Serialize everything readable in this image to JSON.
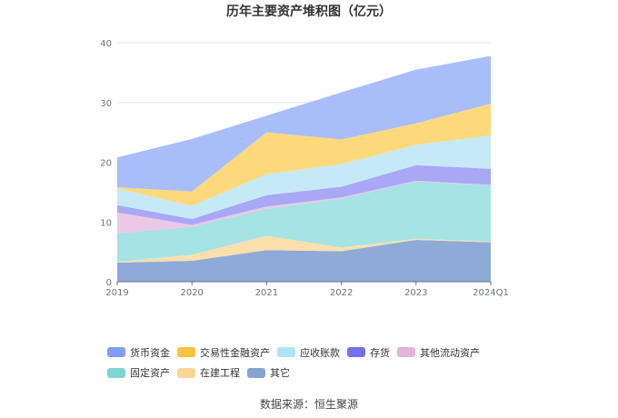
{
  "source_text": "数据来源：恒生聚源",
  "chart_data": {
    "type": "area",
    "stacked": true,
    "title": "历年主要资产堆积图（亿元）",
    "categories": [
      "2019",
      "2020",
      "2021",
      "2022",
      "2023",
      "2024Q1"
    ],
    "ylim": [
      0,
      40
    ],
    "yticks": [
      0,
      10,
      20,
      30,
      40
    ],
    "grid": true,
    "legend_position": "bottom",
    "series": [
      {
        "name": "其它",
        "color": "#8eaad9",
        "values": [
          3.2,
          3.5,
          5.3,
          5.1,
          7.0,
          6.6
        ]
      },
      {
        "name": "在建工程",
        "color": "#fddfab",
        "values": [
          0.1,
          1.0,
          2.4,
          0.6,
          0.2,
          0.1
        ]
      },
      {
        "name": "固定资产",
        "color": "#a6e3e3",
        "values": [
          4.8,
          4.7,
          4.5,
          8.2,
          9.6,
          9.4
        ]
      },
      {
        "name": "其他流动资产",
        "color": "#ebc8e6",
        "values": [
          3.5,
          0.3,
          0.4,
          0.2,
          0.1,
          0.1
        ]
      },
      {
        "name": "存货",
        "color": "#a8a8f5",
        "values": [
          1.2,
          1.0,
          1.9,
          1.8,
          2.6,
          2.7
        ]
      },
      {
        "name": "应收账款",
        "color": "#c6e9f8",
        "values": [
          2.8,
          2.2,
          3.5,
          3.8,
          3.4,
          5.6
        ]
      },
      {
        "name": "交易性金融资产",
        "color": "#fed97c",
        "values": [
          0.2,
          2.4,
          7.0,
          4.1,
          3.6,
          5.3
        ]
      },
      {
        "name": "货币资金",
        "color": "#a9bdfb",
        "values": [
          5.0,
          8.8,
          2.8,
          7.9,
          9.0,
          8.0
        ]
      }
    ],
    "legend": [
      {
        "name": "货币资金",
        "color": "#7e9ef7"
      },
      {
        "name": "交易性金融资产",
        "color": "#fbc23d"
      },
      {
        "name": "应收账款",
        "color": "#ade4fb"
      },
      {
        "name": "存货",
        "color": "#7272ec"
      },
      {
        "name": "其他流动资产",
        "color": "#e4b3dc"
      },
      {
        "name": "固定资产",
        "color": "#7fd6d6"
      },
      {
        "name": "在建工程",
        "color": "#fdd596"
      },
      {
        "name": "其它",
        "color": "#86a3d2"
      }
    ]
  }
}
